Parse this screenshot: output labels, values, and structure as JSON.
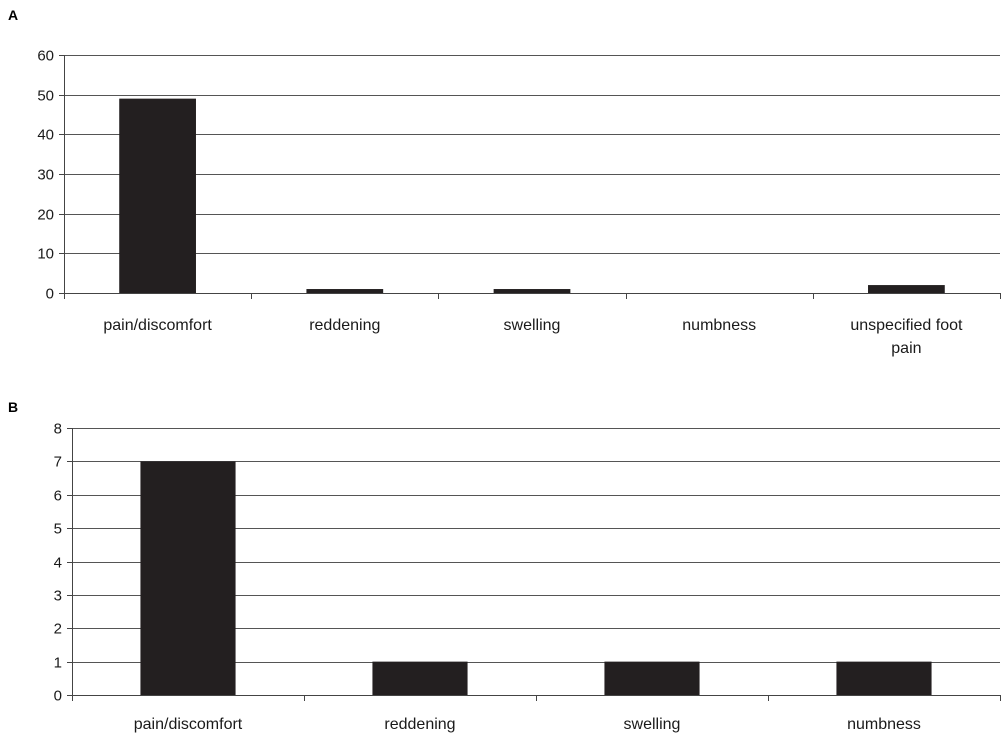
{
  "chart_data": [
    {
      "panel": "A",
      "type": "bar",
      "categories": [
        [
          "pain/discomfort"
        ],
        [
          "reddening"
        ],
        [
          "swelling"
        ],
        [
          "numbness"
        ],
        [
          "unspecified foot",
          "pain"
        ]
      ],
      "values": [
        49,
        1,
        1,
        0,
        2
      ],
      "ylim": [
        0,
        60
      ],
      "yticks": [
        0,
        10,
        20,
        30,
        40,
        50,
        60
      ],
      "grid": true,
      "bar_color": "#231f20"
    },
    {
      "panel": "B",
      "type": "bar",
      "categories": [
        [
          "pain/discomfort"
        ],
        [
          "reddening"
        ],
        [
          "swelling"
        ],
        [
          "numbness"
        ]
      ],
      "values": [
        7,
        1,
        1,
        1
      ],
      "ylim": [
        0,
        8
      ],
      "yticks": [
        0,
        1,
        2,
        3,
        4,
        5,
        6,
        7,
        8
      ],
      "grid": true,
      "bar_color": "#231f20"
    }
  ]
}
